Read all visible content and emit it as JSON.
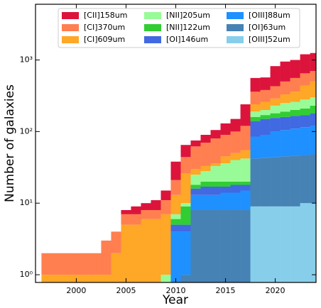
{
  "chart_data": {
    "type": "stacked_step",
    "x_label": "Year",
    "y_label": "Number of galaxies",
    "x": [
      1997,
      1998,
      1999,
      2000,
      2001,
      2002,
      2003,
      2004,
      2005,
      2006,
      2007,
      2008,
      2009,
      2010,
      2011,
      2012,
      2013,
      2014,
      2015,
      2016,
      2017,
      2018,
      2019,
      2020,
      2021,
      2022,
      2023,
      2024
    ],
    "xlim": [
      1995.9,
      2024.1
    ],
    "xticks": [
      2000,
      2005,
      2010,
      2015,
      2020
    ],
    "ylim": [
      0.78,
      6000
    ],
    "log_y": true,
    "yticks": [
      {
        "value": 1,
        "label": "10⁰"
      },
      {
        "value": 10,
        "label": "10¹"
      },
      {
        "value": 100,
        "label": "10²"
      },
      {
        "value": 1000,
        "label": "10³"
      }
    ],
    "legend": "upper center",
    "series": [
      {
        "name": "[CII]158um",
        "color": "#dc143c",
        "values": [
          0,
          0,
          0,
          0,
          0,
          0,
          0,
          0,
          1,
          2,
          2,
          3,
          4,
          17,
          21,
          13,
          20,
          25,
          40,
          50,
          120,
          200,
          190,
          390,
          450,
          440,
          550,
          550
        ]
      },
      {
        "name": "[CI]370um",
        "color": "#ff7f50",
        "values": [
          1,
          1,
          1,
          1,
          1,
          1,
          2,
          2,
          2,
          2,
          2,
          2,
          4,
          8,
          18,
          32,
          37,
          44,
          45,
          50,
          65,
          120,
          120,
          140,
          170,
          200,
          210,
          200
        ]
      },
      {
        "name": "[CI]609um",
        "color": "#ffa726",
        "values": [
          1,
          1,
          1,
          1,
          1,
          1,
          1,
          2,
          5,
          5,
          6,
          6,
          6,
          6,
          16,
          5,
          5,
          3,
          9,
          10,
          13,
          50,
          60,
          60,
          80,
          100,
          160,
          200
        ]
      },
      {
        "name": "[NII]205um",
        "color": "#98fb98",
        "values": [
          0,
          0,
          0,
          0,
          0,
          0,
          0,
          0,
          0,
          0,
          0,
          0,
          1,
          1,
          1,
          7,
          8,
          13,
          16,
          20,
          22,
          30,
          30,
          50,
          60,
          60,
          70,
          70
        ]
      },
      {
        "name": "[NII]122um",
        "color": "#32cd32",
        "values": [
          0,
          0,
          0,
          0,
          0,
          0,
          0,
          0,
          0,
          0,
          0,
          0,
          0,
          1,
          4,
          2,
          3,
          3,
          3,
          2,
          2,
          20,
          20,
          25,
          30,
          35,
          40,
          50
        ]
      },
      {
        "name": "[OI]146um",
        "color": "#4169e1",
        "values": [
          0,
          0,
          0,
          0,
          0,
          0,
          0,
          0,
          0,
          0,
          0,
          0,
          0,
          1,
          1,
          3,
          4,
          4,
          3,
          4,
          3,
          55,
          60,
          55,
          55,
          55,
          55,
          60
        ]
      },
      {
        "name": "[OIII]88um",
        "color": "#1e90ff",
        "values": [
          0,
          0,
          0,
          0,
          0,
          0,
          0,
          0,
          0,
          0,
          0,
          0,
          0,
          4,
          3,
          5,
          5,
          5,
          6,
          6,
          7,
          43,
          47,
          56,
          60,
          64,
          68,
          72
        ]
      },
      {
        "name": "[OI]63um",
        "color": "#4682b4",
        "values": [
          0,
          0,
          0,
          0,
          0,
          0,
          0,
          0,
          0,
          0,
          0,
          0,
          0,
          0,
          1,
          8,
          8,
          8,
          8,
          8,
          8,
          33,
          34,
          35,
          36,
          37,
          37,
          38
        ]
      },
      {
        "name": "[OIII]52um",
        "color": "#87ceeb",
        "values": [
          0,
          0,
          0,
          0,
          0,
          0,
          0,
          0,
          0,
          0,
          0,
          0,
          0,
          0,
          0,
          0,
          0,
          0,
          0,
          0,
          0,
          9,
          9,
          9,
          9,
          9,
          10,
          10
        ]
      }
    ]
  }
}
